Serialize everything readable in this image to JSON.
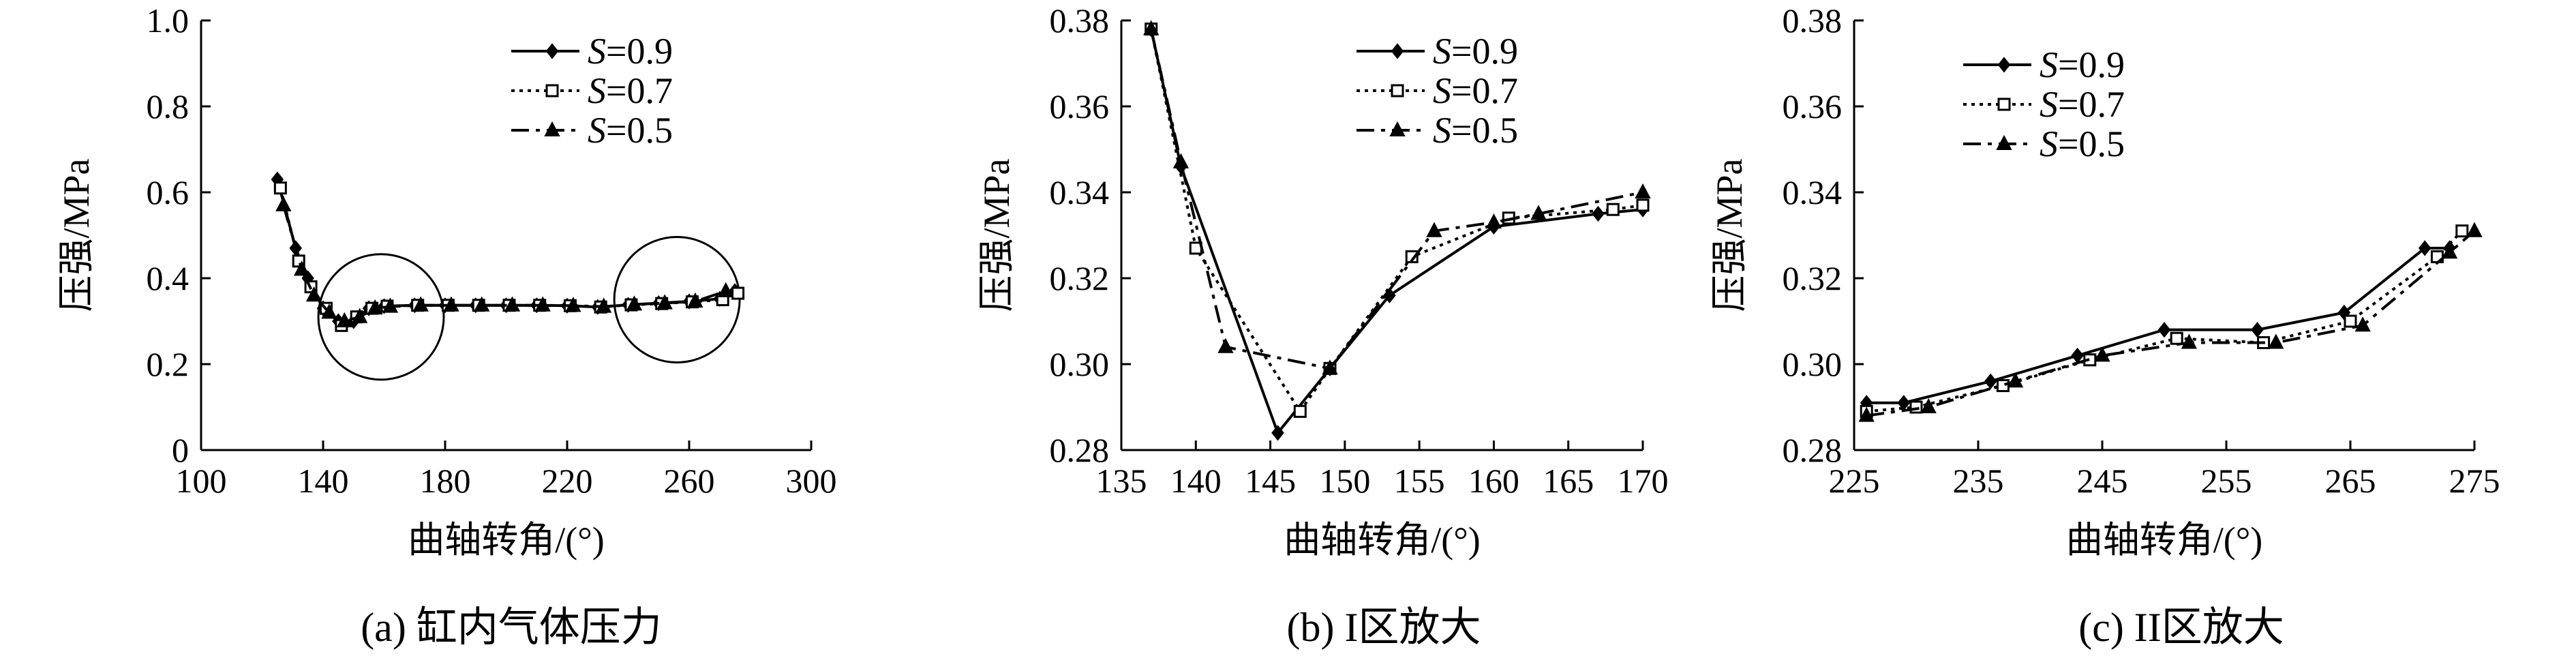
{
  "chart_data": [
    {
      "type": "line",
      "caption": "(a) 缸内气体压力",
      "xlabel": "曲轴转角/(°)",
      "ylabel": "压强/MPa",
      "xlim": [
        100,
        300
      ],
      "ylim": [
        0,
        1.0
      ],
      "xticks": [
        100,
        140,
        180,
        220,
        260,
        300
      ],
      "yticks": [
        0,
        0.2,
        0.4,
        0.6,
        0.8,
        1.0
      ],
      "ytick_labels": [
        "0",
        "0.2",
        "0.4",
        "0.6",
        "0.8",
        "1.0"
      ],
      "legend_position": "top-right",
      "grid": false,
      "annotations": [
        {
          "shape": "circle",
          "cx": 159,
          "cy": 0.31
        },
        {
          "shape": "circle",
          "cx": 256,
          "cy": 0.35
        }
      ],
      "series": [
        {
          "name": "S=0.9",
          "line": "solid",
          "marker": "diamond",
          "x": [
            125,
            131,
            135,
            140,
            145,
            150,
            155,
            160,
            170,
            180,
            190,
            200,
            210,
            220,
            230,
            240,
            250,
            260,
            270,
            275
          ],
          "y": [
            0.63,
            0.47,
            0.4,
            0.33,
            0.3,
            0.3,
            0.33,
            0.335,
            0.337,
            0.337,
            0.337,
            0.337,
            0.337,
            0.336,
            0.333,
            0.338,
            0.342,
            0.346,
            0.352,
            0.37
          ]
        },
        {
          "name": "S=0.7",
          "line": "dotted",
          "marker": "square",
          "x": [
            126,
            132,
            136,
            141,
            146,
            151,
            156,
            161,
            171,
            181,
            191,
            201,
            211,
            221,
            231,
            241,
            251,
            261,
            271,
            276
          ],
          "y": [
            0.61,
            0.44,
            0.38,
            0.33,
            0.29,
            0.31,
            0.33,
            0.335,
            0.337,
            0.337,
            0.337,
            0.337,
            0.337,
            0.336,
            0.333,
            0.338,
            0.341,
            0.345,
            0.35,
            0.365
          ]
        },
        {
          "name": "S=0.5",
          "line": "dashdot",
          "marker": "triangle",
          "x": [
            127,
            133,
            137,
            142,
            147,
            152,
            157,
            162,
            172,
            182,
            192,
            202,
            212,
            222,
            232,
            242,
            252,
            262,
            272
          ],
          "y": [
            0.57,
            0.42,
            0.36,
            0.32,
            0.3,
            0.31,
            0.33,
            0.334,
            0.337,
            0.337,
            0.337,
            0.337,
            0.337,
            0.336,
            0.334,
            0.339,
            0.342,
            0.346,
            0.37
          ]
        }
      ]
    },
    {
      "type": "line",
      "caption": "(b) I区放大",
      "xlabel": "曲轴转角/(°)",
      "ylabel": "压强/MPa",
      "xlim": [
        135,
        170
      ],
      "ylim": [
        0.28,
        0.38
      ],
      "xticks": [
        135,
        140,
        145,
        150,
        155,
        160,
        165,
        170
      ],
      "yticks": [
        0.28,
        0.3,
        0.32,
        0.34,
        0.36,
        0.38
      ],
      "ytick_labels": [
        "0.28",
        "0.30",
        "0.32",
        "0.34",
        "0.36",
        "0.38"
      ],
      "legend_position": "top-right",
      "grid": false,
      "series": [
        {
          "name": "S=0.9",
          "line": "solid",
          "marker": "diamond",
          "x": [
            137,
            139,
            145.5,
            149,
            153,
            160,
            167,
            170
          ],
          "y": [
            0.378,
            0.346,
            0.284,
            0.299,
            0.316,
            0.332,
            0.335,
            0.336
          ]
        },
        {
          "name": "S=0.7",
          "line": "dotted",
          "marker": "square",
          "x": [
            137,
            140,
            147,
            149,
            154.5,
            161,
            168,
            170
          ],
          "y": [
            0.378,
            0.327,
            0.289,
            0.299,
            0.325,
            0.334,
            0.336,
            0.337
          ]
        },
        {
          "name": "S=0.5",
          "line": "dashdot",
          "marker": "triangle",
          "x": [
            137,
            139,
            142,
            149,
            156,
            160,
            163,
            170
          ],
          "y": [
            0.378,
            0.347,
            0.304,
            0.299,
            0.331,
            0.333,
            0.335,
            0.34
          ]
        }
      ]
    },
    {
      "type": "line",
      "caption": "(c) II区放大",
      "xlabel": "曲轴转角/(°)",
      "ylabel": "压强/MPa",
      "xlim": [
        225,
        275
      ],
      "ylim": [
        0.28,
        0.38
      ],
      "xticks": [
        225,
        235,
        245,
        255,
        265,
        275
      ],
      "yticks": [
        0.28,
        0.3,
        0.32,
        0.34,
        0.36,
        0.38
      ],
      "ytick_labels": [
        "0.28",
        "0.30",
        "0.32",
        "0.34",
        "0.36",
        "0.38"
      ],
      "legend_position": "top-left",
      "grid": false,
      "series": [
        {
          "name": "S=0.9",
          "line": "solid",
          "marker": "diamond",
          "x": [
            226,
            229,
            236,
            243,
            250,
            257.5,
            264.5,
            271,
            273
          ],
          "y": [
            0.291,
            0.291,
            0.296,
            0.302,
            0.308,
            0.308,
            0.312,
            0.327,
            0.327
          ]
        },
        {
          "name": "S=0.7",
          "line": "dotted",
          "marker": "square",
          "x": [
            226,
            230,
            237,
            244,
            251,
            258,
            265,
            272,
            274
          ],
          "y": [
            0.289,
            0.29,
            0.295,
            0.301,
            0.306,
            0.305,
            0.31,
            0.325,
            0.331
          ]
        },
        {
          "name": "S=0.5",
          "line": "dashdot",
          "marker": "triangle",
          "x": [
            226,
            231,
            238,
            245,
            252,
            259,
            266,
            273,
            275
          ],
          "y": [
            0.288,
            0.29,
            0.296,
            0.302,
            0.305,
            0.305,
            0.309,
            0.326,
            0.331
          ]
        }
      ]
    }
  ]
}
